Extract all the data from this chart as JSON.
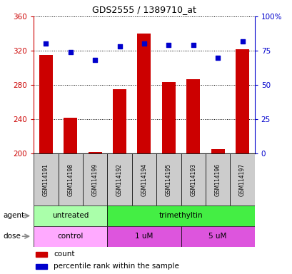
{
  "title": "GDS2555 / 1389710_at",
  "samples": [
    "GSM114191",
    "GSM114198",
    "GSM114199",
    "GSM114192",
    "GSM114194",
    "GSM114195",
    "GSM114193",
    "GSM114196",
    "GSM114197"
  ],
  "counts": [
    315,
    242,
    202,
    275,
    340,
    283,
    287,
    205,
    322
  ],
  "percentiles": [
    80,
    74,
    68,
    78,
    80,
    79,
    79,
    70,
    82
  ],
  "ymin": 200,
  "ymax": 360,
  "yright_min": 0,
  "yright_max": 100,
  "yticks_left": [
    200,
    240,
    280,
    320,
    360
  ],
  "yticks_right": [
    0,
    25,
    50,
    75,
    100
  ],
  "bar_color": "#cc0000",
  "dot_color": "#0000cc",
  "bar_base": 200,
  "agent_groups": [
    {
      "label": "untreated",
      "start": 0,
      "end": 3,
      "color": "#aaffaa"
    },
    {
      "label": "trimethyltin",
      "start": 3,
      "end": 9,
      "color": "#44ee44"
    }
  ],
  "dose_groups": [
    {
      "label": "control",
      "start": 0,
      "end": 3,
      "color": "#ffaaff"
    },
    {
      "label": "1 uM",
      "start": 3,
      "end": 6,
      "color": "#dd55dd"
    },
    {
      "label": "5 uM",
      "start": 6,
      "end": 9,
      "color": "#dd55dd"
    }
  ],
  "legend_count_label": "count",
  "legend_pct_label": "percentile rank within the sample",
  "agent_label": "agent",
  "dose_label": "dose",
  "tick_label_color": "#cc0000",
  "right_tick_color": "#0000cc",
  "bg_color": "#ffffff",
  "sample_box_color": "#cccccc",
  "grid_color": "#000000",
  "arrow_color": "#888888"
}
